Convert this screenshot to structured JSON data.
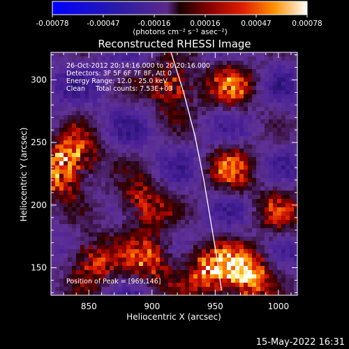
{
  "chart_data": {
    "type": "heatmap",
    "title": "Reconstructed RHESSI Image",
    "xlabel": "Heliocentric X (arcsec)",
    "ylabel": "Heliocentric Y (arcsec)",
    "xlim": [
      820,
      1015
    ],
    "ylim": [
      128,
      322
    ],
    "x_ticks": [
      850,
      900,
      950,
      1000
    ],
    "y_ticks": [
      150,
      200,
      250,
      300
    ],
    "colorbar": {
      "ticks": [
        "-0.00078",
        "-0.00047",
        "-0.00016",
        "0.00016",
        "0.00047",
        "0.00078"
      ],
      "units_label": "(photons cm⁻² s⁻¹ asec⁻²)",
      "range": [
        -0.00078,
        0.00078
      ]
    },
    "annotations": [
      "26-Oct-2012 20:14:16.000 to 20:20:16.000",
      "Detectors: 3F 5F 6F 7F 8F, Att 0",
      "Energy Range: 12.0 - 25.0 keV",
      "Clean     Total counts: 7.53E+03"
    ],
    "peak_label": "Position of Peak = [969,146]",
    "limb_curve": [
      [
        915,
        322
      ],
      [
        925,
        290
      ],
      [
        934,
        255
      ],
      [
        941,
        220
      ],
      [
        946,
        190
      ],
      [
        951,
        160
      ],
      [
        955,
        132
      ]
    ],
    "colors": {
      "background": "#000000",
      "limb": "#ffffff"
    }
  },
  "footer": {
    "timestamp": "15-May-2022 16:31"
  }
}
